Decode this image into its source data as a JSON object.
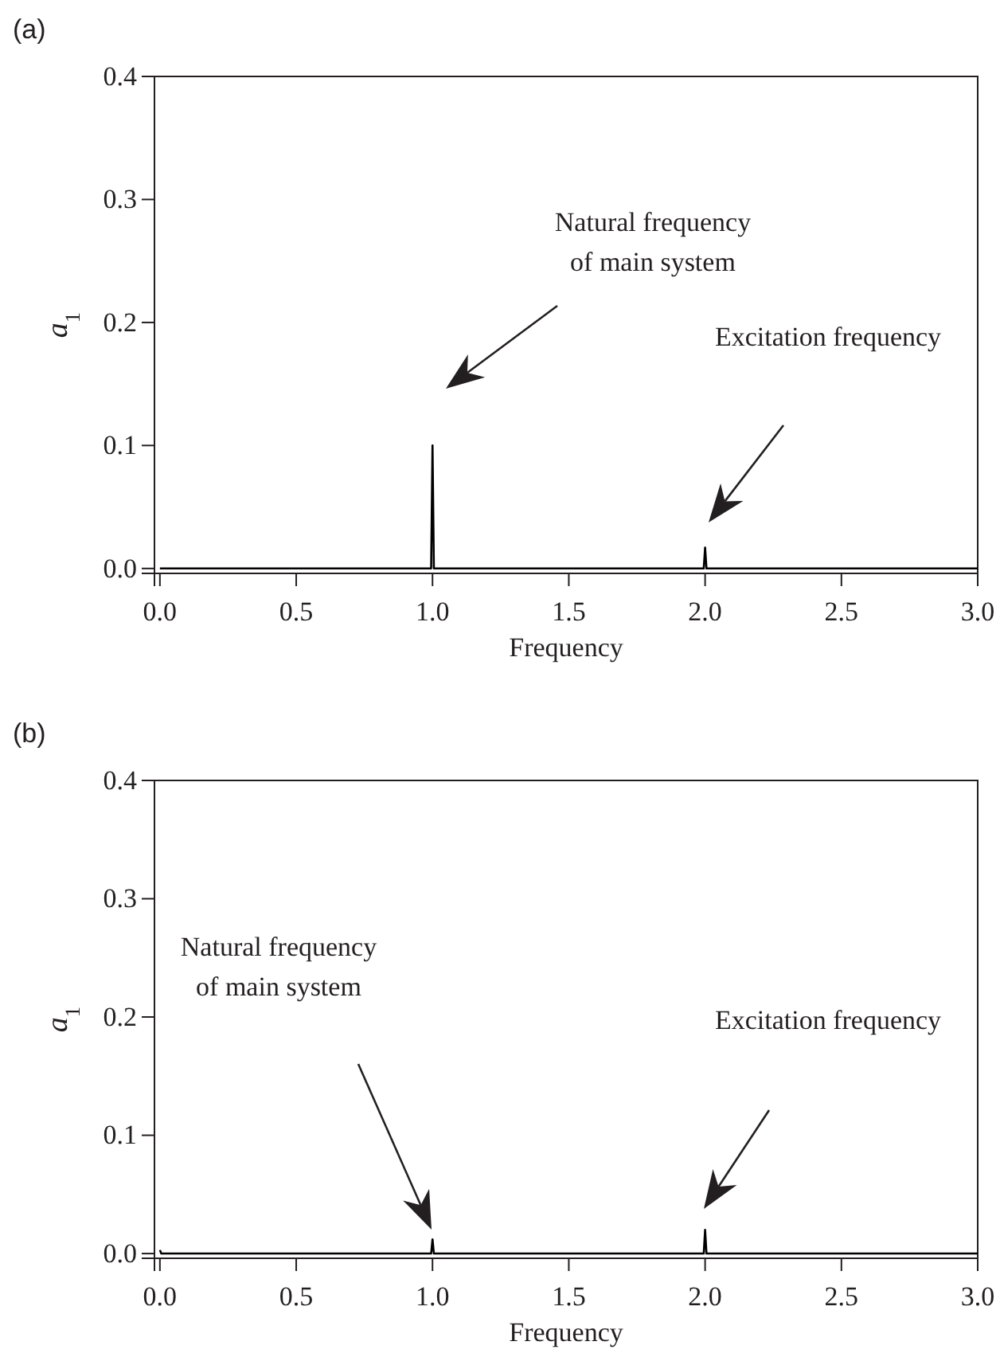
{
  "chart_data": [
    {
      "type": "line",
      "title": "(a)",
      "xlabel": "Frequency",
      "ylabel": "a$_{1}$",
      "series": [
        {
          "color": "#000000",
          "x": [
            0,
            0.98,
            0.995,
            1.0,
            1.005,
            1.02,
            1.98,
            1.995,
            2.0,
            2.005,
            2.02,
            3.0
          ],
          "values": [
            0,
            0,
            0,
            0.1,
            0,
            0,
            0,
            0,
            0.017,
            0,
            0,
            0
          ]
        }
      ],
      "xlim": [
        -0.02,
        3.0
      ],
      "xticks": [
        {
          "value": 0,
          "label": "0.0"
        },
        0.5,
        {
          "value": 1,
          "label": "1.0"
        },
        1.5,
        {
          "value": 2,
          "label": "2.0"
        },
        2.5,
        {
          "value": 3,
          "label": "3.0"
        }
      ],
      "ylim": [
        -0.004,
        0.4
      ],
      "yticks": [
        {
          "value": 0,
          "label": "0.0"
        },
        0.1,
        0.2,
        0.3,
        0.4
      ],
      "annotations": [
        "Natural frequency\nof main system",
        "Excitation frequency"
      ]
    },
    {
      "type": "line",
      "title": "(b)",
      "xlabel": "Frequency",
      "ylabel": "a$_{1}$",
      "series": [
        {
          "color": "#000000",
          "x": [
            0,
            0.005,
            0.01,
            0.98,
            0.995,
            1.0,
            1.005,
            1.02,
            1.98,
            1.995,
            2.0,
            2.005,
            2.02,
            3.0
          ],
          "values": [
            0.003,
            0,
            0,
            0,
            0,
            0.012,
            0,
            0,
            0,
            0,
            0.02,
            0,
            0,
            0
          ]
        }
      ],
      "xlim": [
        -0.02,
        3.0
      ],
      "xticks": [
        {
          "value": 0,
          "label": "0.0"
        },
        0.5,
        {
          "value": 1,
          "label": "1.0"
        },
        1.5,
        {
          "value": 2,
          "label": "2.0"
        },
        2.5,
        {
          "value": 3,
          "label": "3.0"
        }
      ],
      "ylim": [
        -0.004,
        0.4
      ],
      "yticks": [
        {
          "value": 0,
          "label": "0.0"
        },
        0.1,
        0.2,
        0.3,
        0.4
      ],
      "annotations": [
        "Natural frequency\nof main system",
        "Excitation frequency"
      ]
    }
  ]
}
